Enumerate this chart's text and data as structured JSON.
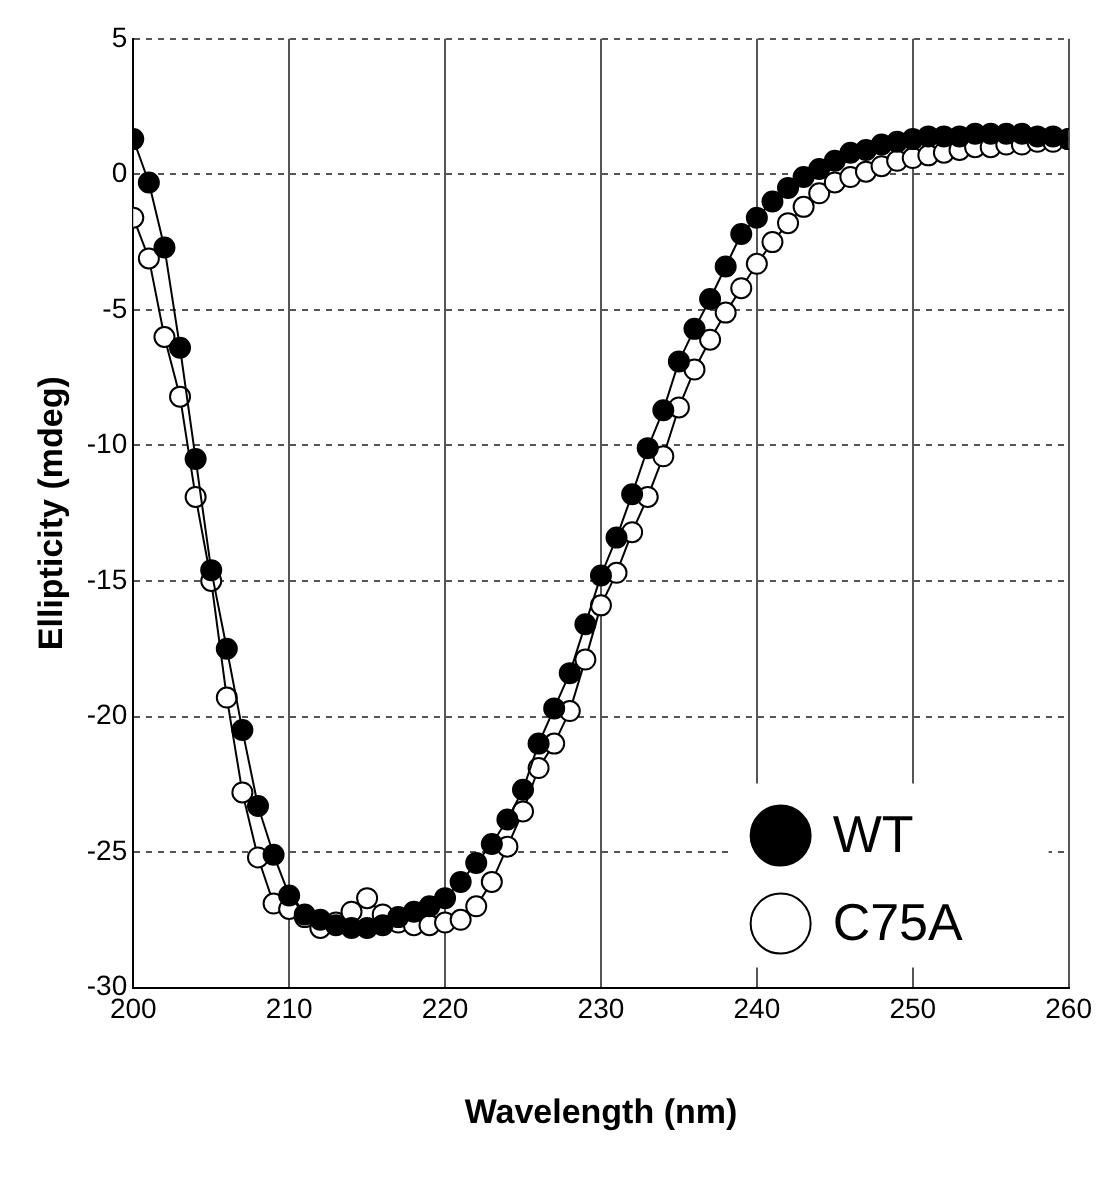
{
  "chart_data": {
    "type": "line",
    "xlabel": "Wavelength (nm)",
    "ylabel": "Ellipticity (mdeg)",
    "x": [
      200,
      201,
      202,
      203,
      204,
      205,
      206,
      207,
      208,
      209,
      210,
      211,
      212,
      213,
      214,
      215,
      216,
      217,
      218,
      219,
      220,
      221,
      222,
      223,
      224,
      225,
      226,
      227,
      228,
      229,
      230,
      231,
      232,
      233,
      234,
      235,
      236,
      237,
      238,
      239,
      240,
      241,
      242,
      243,
      244,
      245,
      246,
      247,
      248,
      249,
      250,
      251,
      252,
      253,
      254,
      255,
      256,
      257,
      258,
      259,
      260
    ],
    "series": [
      {
        "name": "WT",
        "color": "#000000",
        "values": [
          1.3,
          -0.3,
          -2.7,
          -6.4,
          -10.5,
          -14.6,
          -17.5,
          -20.5,
          -23.3,
          -25.1,
          -26.6,
          -27.3,
          -27.5,
          -27.7,
          -27.8,
          -27.8,
          -27.7,
          -27.4,
          -27.2,
          -27.0,
          -26.7,
          -26.1,
          -25.4,
          -24.7,
          -23.8,
          -22.7,
          -21.0,
          -19.7,
          -18.4,
          -16.6,
          -14.8,
          -13.4,
          -11.8,
          -10.1,
          -8.7,
          -6.9,
          -5.7,
          -4.6,
          -3.4,
          -2.2,
          -1.6,
          -1.0,
          -0.5,
          -0.1,
          0.2,
          0.5,
          0.8,
          0.9,
          1.1,
          1.2,
          1.3,
          1.4,
          1.4,
          1.4,
          1.5,
          1.5,
          1.5,
          1.5,
          1.4,
          1.4,
          1.3
        ]
      },
      {
        "name": "C75A",
        "color": "#ffffff",
        "values": [
          -1.6,
          -3.1,
          -6.0,
          -8.2,
          -11.9,
          -15.0,
          -19.3,
          -22.8,
          -25.2,
          -26.9,
          -27.1,
          -27.4,
          -27.8,
          -27.6,
          -27.2,
          -26.7,
          -27.3,
          -27.6,
          -27.7,
          -27.7,
          -27.6,
          -27.5,
          -27.0,
          -26.1,
          -24.8,
          -23.5,
          -21.9,
          -21.0,
          -19.8,
          -17.9,
          -15.9,
          -14.7,
          -13.2,
          -11.9,
          -10.4,
          -8.6,
          -7.2,
          -6.1,
          -5.1,
          -4.2,
          -3.3,
          -2.5,
          -1.8,
          -1.2,
          -0.7,
          -0.3,
          -0.1,
          0.1,
          0.3,
          0.5,
          0.6,
          0.7,
          0.8,
          0.9,
          1.0,
          1.0,
          1.1,
          1.1,
          1.2,
          1.2,
          1.3
        ]
      }
    ],
    "xlim": [
      200,
      260
    ],
    "xticks": [
      200,
      210,
      220,
      230,
      240,
      250,
      260
    ],
    "ylim": [
      -30,
      5
    ],
    "yticks": [
      -30,
      -25,
      -20,
      -15,
      -10,
      -5,
      0,
      5
    ],
    "grid": true,
    "legend": "bottom right",
    "marker": "circle",
    "line_style": "solid"
  }
}
